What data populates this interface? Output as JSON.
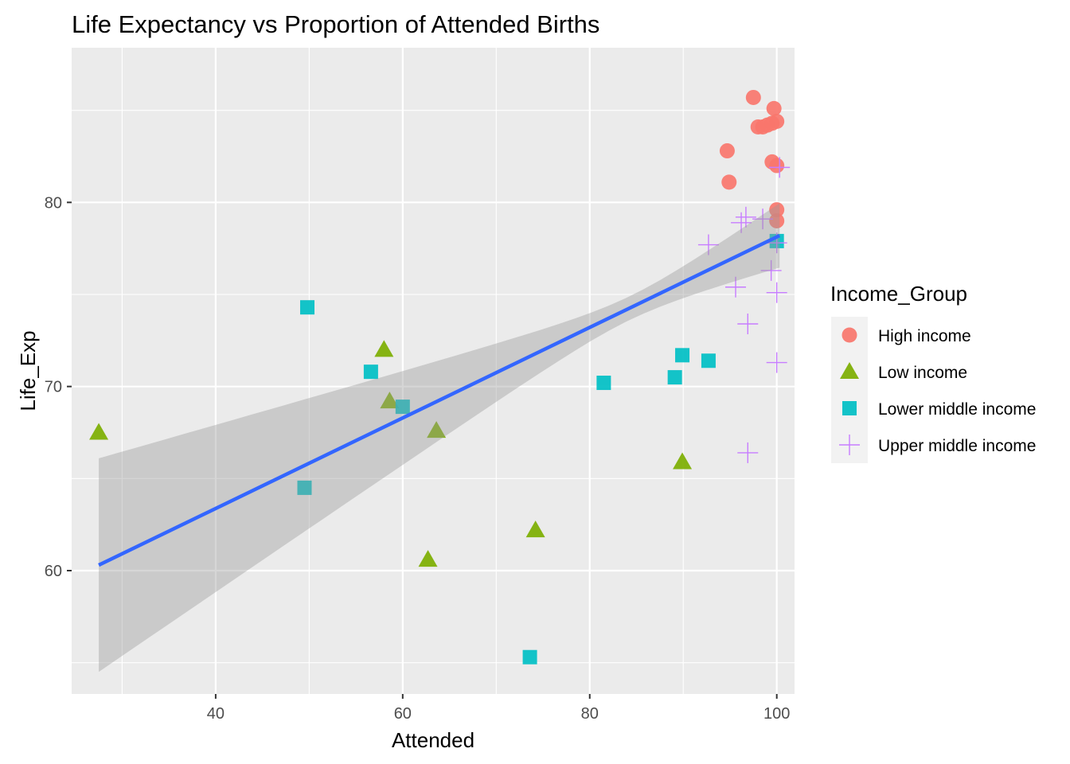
{
  "chart_data": {
    "type": "scatter",
    "title": "Life Expectancy vs Proportion of Attended Births",
    "xlabel": "Attended",
    "ylabel": "Life_Exp",
    "xlim": [
      24.6,
      101.9
    ],
    "ylim": [
      53.3,
      88.4
    ],
    "x_ticks": [
      40,
      60,
      80,
      100
    ],
    "y_ticks": [
      60,
      70,
      80
    ],
    "x_minor": [
      30,
      50,
      70,
      90
    ],
    "y_minor": [
      55,
      65,
      75,
      85
    ],
    "grid": true,
    "legend_title": "Income_Group",
    "legend_position": "right",
    "series": [
      {
        "name": "High income",
        "shape": "circle",
        "color": "#F8766D",
        "points": [
          [
            97.5,
            85.7
          ],
          [
            99.7,
            85.1
          ],
          [
            98.0,
            84.1
          ],
          [
            98.5,
            84.1
          ],
          [
            99.0,
            84.2
          ],
          [
            99.5,
            84.3
          ],
          [
            100.0,
            84.4
          ],
          [
            94.7,
            82.8
          ],
          [
            99.5,
            82.2
          ],
          [
            100.0,
            82.0
          ],
          [
            94.9,
            81.1
          ],
          [
            100.0,
            79.6
          ],
          [
            100.0,
            79.0
          ]
        ]
      },
      {
        "name": "Low income",
        "shape": "triangle",
        "color": "#7CAE00",
        "points": [
          [
            27.5,
            67.5
          ],
          [
            58.0,
            72.0
          ],
          [
            58.6,
            69.2
          ],
          [
            63.6,
            67.6
          ],
          [
            62.7,
            60.6
          ],
          [
            74.2,
            62.2
          ],
          [
            89.9,
            65.9
          ]
        ]
      },
      {
        "name": "Lower middle income",
        "shape": "square",
        "color": "#00BFC4",
        "points": [
          [
            49.8,
            74.3
          ],
          [
            56.6,
            70.8
          ],
          [
            60.0,
            68.9
          ],
          [
            49.5,
            64.5
          ],
          [
            73.6,
            55.3
          ],
          [
            81.5,
            70.2
          ],
          [
            89.1,
            70.5
          ],
          [
            89.9,
            71.7
          ],
          [
            92.7,
            71.4
          ],
          [
            100.0,
            77.9
          ]
        ]
      },
      {
        "name": "Upper middle income",
        "shape": "plus",
        "color": "#C77CFF",
        "points": [
          [
            100.3,
            81.9
          ],
          [
            96.7,
            79.2
          ],
          [
            96.2,
            78.9
          ],
          [
            98.5,
            79.1
          ],
          [
            92.7,
            77.7
          ],
          [
            100.0,
            77.8
          ],
          [
            95.6,
            75.4
          ],
          [
            99.4,
            76.3
          ],
          [
            100.0,
            75.1
          ],
          [
            96.9,
            73.4
          ],
          [
            100.0,
            71.3
          ],
          [
            96.9,
            66.4
          ]
        ]
      }
    ],
    "trend": {
      "method": "lm",
      "color": "#3366FF",
      "band_color": "#999999",
      "x_range": [
        27.5,
        100.3
      ],
      "y_start": 60.3,
      "y_end": 78.2,
      "band_lower_start": 54.5,
      "band_upper_start": 66.1,
      "band_lower_end": 76.0,
      "band_upper_end": 80.3
    }
  }
}
